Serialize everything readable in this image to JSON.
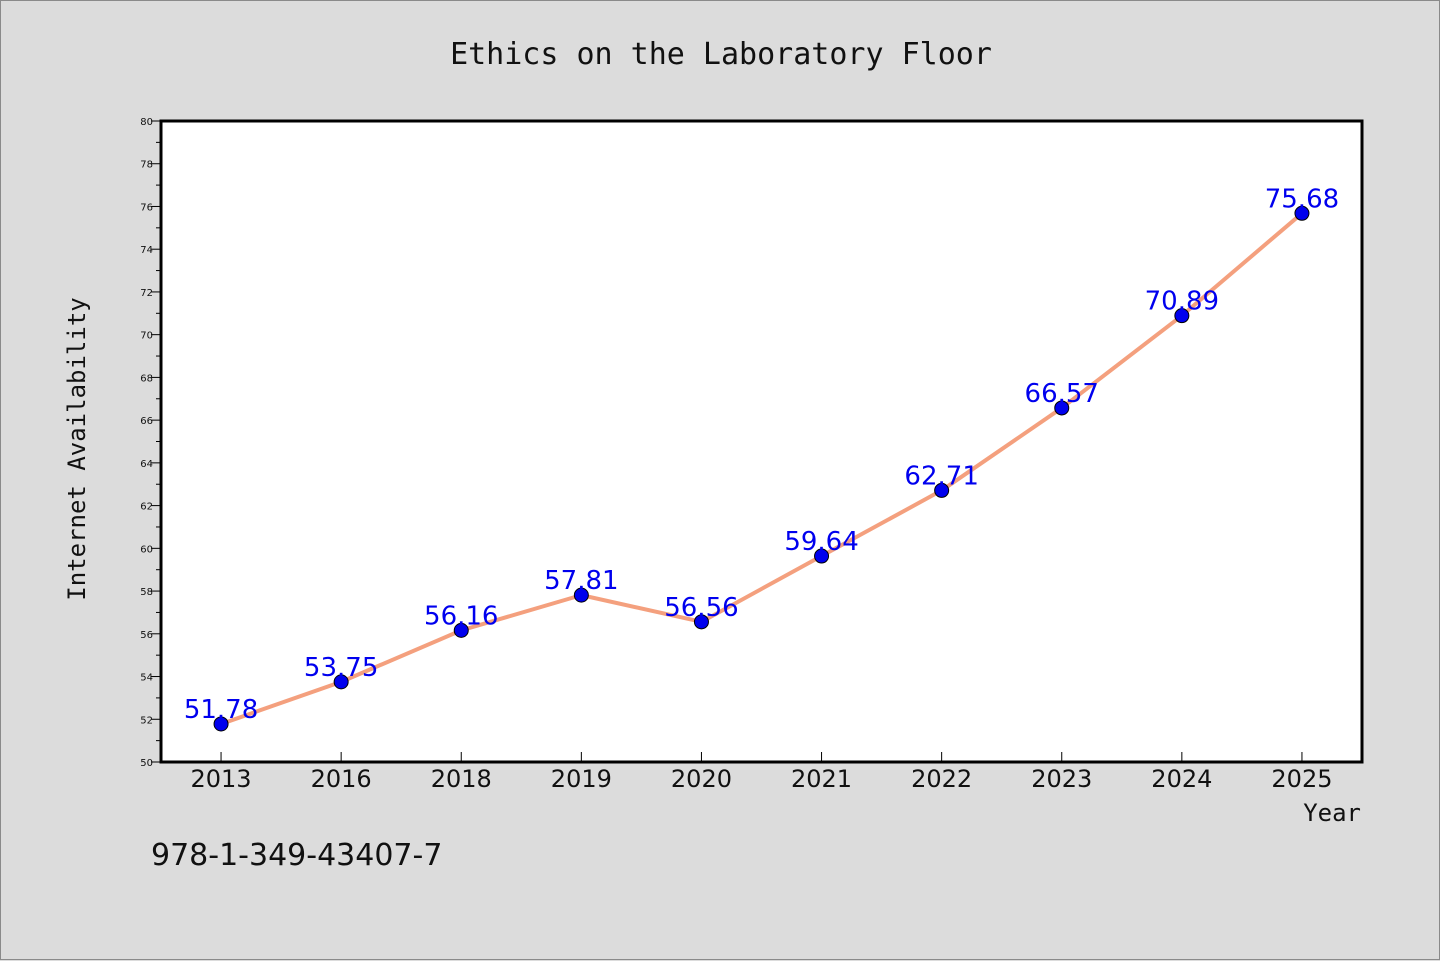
{
  "chart_data": {
    "type": "line",
    "title": "Ethics on the Laboratory Floor",
    "xlabel": "Year",
    "ylabel": "Internet Availability",
    "categories": [
      "2013",
      "2016",
      "2018",
      "2019",
      "2020",
      "2021",
      "2022",
      "2023",
      "2024",
      "2025"
    ],
    "series": [
      {
        "values": [
          51.78,
          53.75,
          56.16,
          57.81,
          56.56,
          59.64,
          62.71,
          66.57,
          70.89,
          75.68
        ]
      }
    ],
    "value_labels": [
      "51.78",
      "53.75",
      "56.16",
      "57.81",
      "56.56",
      "59.64",
      "62.71",
      "66.57",
      "70.89",
      "75.68"
    ],
    "ylim": [
      50,
      80
    ],
    "yticks": [
      "50",
      "52",
      "54",
      "56",
      "58",
      "60",
      "62",
      "64",
      "66",
      "68",
      "70",
      "72",
      "74",
      "76",
      "78",
      "80"
    ],
    "grid": false,
    "legend": "none",
    "colors": {
      "line": "#f4a07e",
      "marker": "#0000ee",
      "label": "#0000ee",
      "background": "#dcdcdc",
      "plot_bg": "#ffffff"
    }
  },
  "footer": {
    "isbn": "978-1-349-43407-7"
  }
}
